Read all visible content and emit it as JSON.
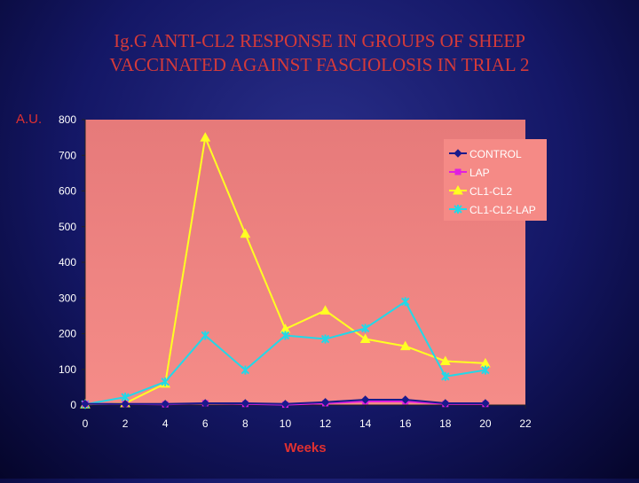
{
  "title_lines": [
    "Ig.G ANTI-CL2 RESPONSE IN GROUPS OF SHEEP",
    "VACCINATED AGAINST FASCIOLOSIS IN TRIAL 2"
  ],
  "chart_data": {
    "type": "line",
    "title": "Ig.G ANTI-CL2 RESPONSE IN GROUPS OF SHEEP VACCINATED AGAINST FASCIOLOSIS IN TRIAL 2",
    "xlabel": "Weeks",
    "ylabel": "A.U.",
    "xlim": [
      0,
      22
    ],
    "ylim": [
      0,
      800
    ],
    "x_ticks": [
      0,
      2,
      4,
      6,
      8,
      10,
      12,
      14,
      16,
      18,
      20,
      22
    ],
    "y_ticks": [
      0,
      100,
      200,
      300,
      400,
      500,
      600,
      700,
      800
    ],
    "grid": false,
    "legend_position": "top-right",
    "series": [
      {
        "name": "CONTROL",
        "color": "#1a1a8c",
        "marker": "diamond",
        "x": [
          0,
          2,
          4,
          6,
          8,
          10,
          12,
          14,
          16,
          18,
          20
        ],
        "values": [
          3,
          3,
          3,
          5,
          5,
          3,
          8,
          15,
          15,
          5,
          5
        ]
      },
      {
        "name": "LAP",
        "color": "#e020e0",
        "marker": "square",
        "x": [
          0,
          2,
          4,
          6,
          8,
          10,
          12,
          14,
          16,
          18,
          20
        ],
        "values": [
          3,
          3,
          2,
          5,
          3,
          1,
          5,
          10,
          10,
          3,
          3
        ]
      },
      {
        "name": "CL1-CL2",
        "color": "#ffff22",
        "marker": "triangle",
        "x": [
          0,
          2,
          4,
          6,
          8,
          10,
          12,
          14,
          16,
          18,
          20
        ],
        "values": [
          2,
          5,
          60,
          750,
          480,
          213,
          265,
          185,
          165,
          123,
          117
        ]
      },
      {
        "name": "CL1-CL2-LAP",
        "color": "#22d8e8",
        "marker": "star",
        "x": [
          0,
          2,
          4,
          6,
          8,
          10,
          12,
          14,
          16,
          18,
          20
        ],
        "values": [
          2,
          22,
          65,
          195,
          98,
          195,
          185,
          215,
          290,
          80,
          98
        ]
      }
    ]
  }
}
